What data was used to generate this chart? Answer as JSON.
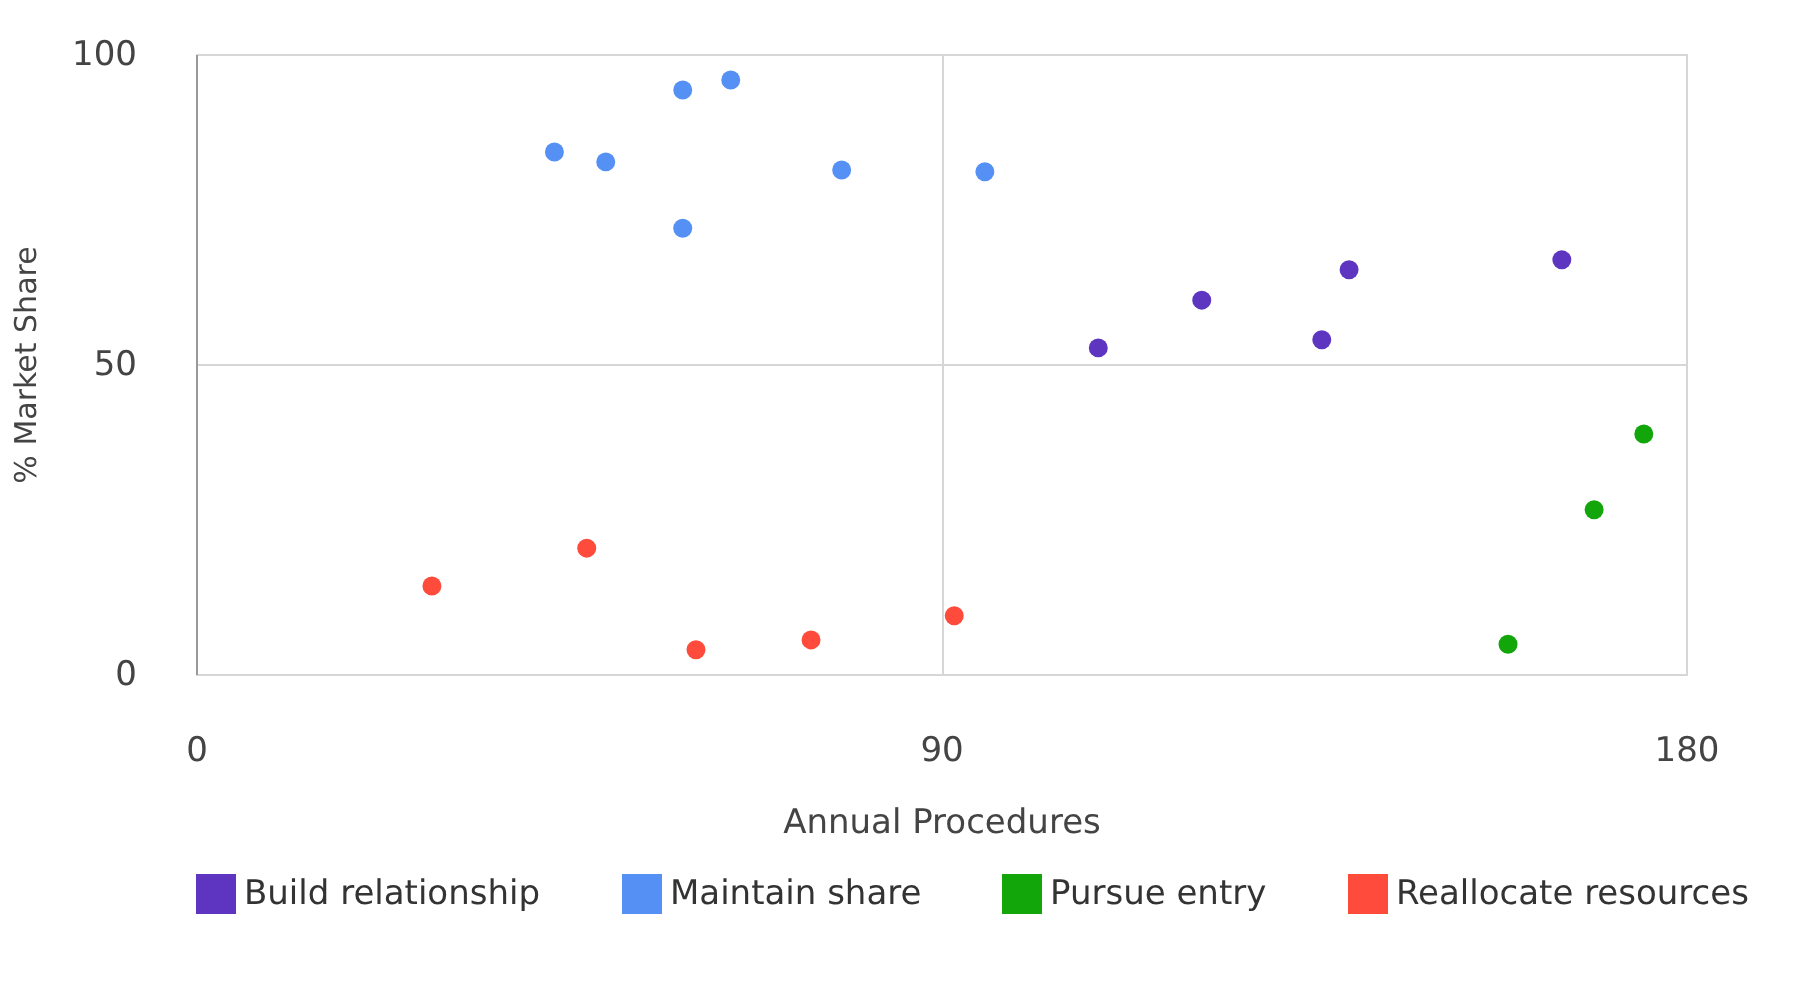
{
  "chart_data": {
    "type": "scatter",
    "xlabel": "Annual Procedures",
    "ylabel": "% Market Share",
    "xlim": [
      0,
      180
    ],
    "xticks": [
      0,
      90,
      180
    ],
    "ylim": [
      0,
      100
    ],
    "yticks": [
      0,
      50,
      100
    ],
    "grid": true,
    "legend": "bottom",
    "marker": "circle",
    "series": [
      {
        "name": "Build relationship",
        "color": "#5e35c1",
        "x": [
          109.0,
          121.5,
          136.0,
          139.3,
          165.0
        ],
        "values": [
          52.6,
          60.3,
          53.9,
          65.2,
          66.8
        ]
      },
      {
        "name": "Maintain share",
        "color": "#5591f5",
        "x": [
          43.3,
          49.5,
          58.8,
          58.8,
          64.6,
          78.0,
          95.3
        ],
        "values": [
          84.2,
          82.6,
          94.2,
          71.9,
          95.8,
          81.3,
          81.0
        ]
      },
      {
        "name": "Pursue entry",
        "color": "#13a60a",
        "x": [
          158.5,
          168.9,
          174.9
        ],
        "values": [
          4.8,
          26.5,
          38.7
        ]
      },
      {
        "name": "Reallocate resources",
        "color": "#fe4b3c",
        "x": [
          28.5,
          47.2,
          60.4,
          74.3,
          91.6
        ],
        "values": [
          14.2,
          20.3,
          3.9,
          5.5,
          9.4
        ]
      }
    ]
  }
}
